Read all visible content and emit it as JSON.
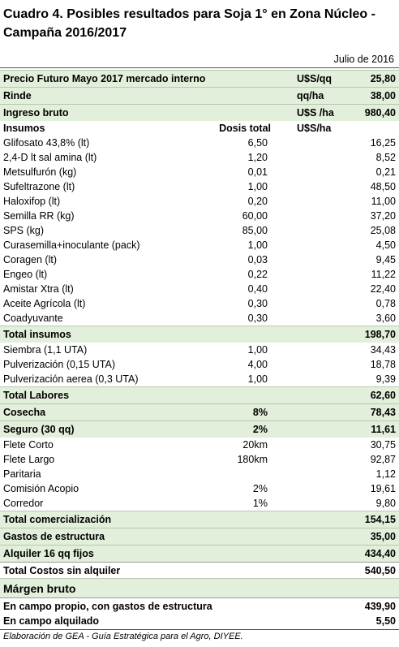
{
  "title": "Cuadro 4. Posibles resultados para Soja 1° en Zona Núcleo - Campaña 2016/2017",
  "date": "Julio de 2016",
  "rows": [
    {
      "label": "Precio Futuro Mayo 2017 mercado interno",
      "unit": "U$S/qq",
      "value": "25,80"
    },
    {
      "label": "Rinde",
      "unit": "qq/ha",
      "value": "38,00"
    },
    {
      "label": "Ingreso bruto",
      "unit": "U$S /ha",
      "value": "980,40"
    },
    {
      "label": "Insumos",
      "dose": "Dosis total",
      "unit": "U$S/ha"
    },
    {
      "label": "Glifosato 43,8% (lt)",
      "dose": "6,50",
      "value": "16,25"
    },
    {
      "label": "2,4-D lt sal amina (lt)",
      "dose": "1,20",
      "value": "8,52"
    },
    {
      "label": "Metsulfurón (kg)",
      "dose": "0,01",
      "value": "0,21"
    },
    {
      "label": "Sufeltrazone (lt)",
      "dose": "1,00",
      "value": "48,50"
    },
    {
      "label": "Haloxifop (lt)",
      "dose": "0,20",
      "value": "11,00"
    },
    {
      "label": "Semilla RR (kg)",
      "dose": "60,00",
      "value": "37,20"
    },
    {
      "label": "SPS (kg)",
      "dose": "85,00",
      "value": "25,08"
    },
    {
      "label": "Curasemilla+inoculante (pack)",
      "dose": "1,00",
      "value": "4,50"
    },
    {
      "label": "Coragen (lt)",
      "dose": "0,03",
      "value": "9,45"
    },
    {
      "label": "Engeo (lt)",
      "dose": "0,22",
      "value": "11,22"
    },
    {
      "label": "Amistar Xtra (lt)",
      "dose": "0,40",
      "value": "22,40"
    },
    {
      "label": "Aceite Agrícola (lt)",
      "dose": "0,30",
      "value": "0,78"
    },
    {
      "label": "Coadyuvante",
      "dose": "0,30",
      "value": "3,60"
    },
    {
      "label": "Total insumos",
      "value": "198,70"
    },
    {
      "label": "Siembra (1,1 UTA)",
      "dose": "1,00",
      "value": "34,43"
    },
    {
      "label": "Pulverización (0,15 UTA)",
      "dose": "4,00",
      "value": "18,78"
    },
    {
      "label": "Pulverización aerea (0,3 UTA)",
      "dose": "1,00",
      "value": "9,39"
    },
    {
      "label": "Total Labores",
      "value": "62,60"
    },
    {
      "label": "Cosecha",
      "dose": "8%",
      "value": "78,43"
    },
    {
      "label": "Seguro (30 qq)",
      "dose": "2%",
      "value": "11,61"
    },
    {
      "label": "Flete Corto",
      "dose": "20km",
      "value": "30,75"
    },
    {
      "label": "Flete Largo",
      "dose": "180km",
      "value": "92,87"
    },
    {
      "label": "Paritaria",
      "value": "1,12"
    },
    {
      "label": "Comisión Acopio",
      "dose": "2%",
      "value": "19,61"
    },
    {
      "label": "Corredor",
      "dose": "1%",
      "value": "9,80"
    },
    {
      "label": "Total comercialización",
      "value": "154,15"
    },
    {
      "label": "Gastos de estructura",
      "value": "35,00"
    },
    {
      "label": "Alquiler 16 qq fijos",
      "value": "434,40"
    },
    {
      "label": "Total Costos sin alquiler",
      "value": "540,50"
    },
    {
      "label": "Márgen bruto"
    },
    {
      "label": "En campo propio, con gastos de estructura",
      "value": "439,90"
    },
    {
      "label": "En campo alquilado",
      "value": "5,50"
    }
  ],
  "source": "Elaboración de GEA - Guía Estratégica para el Agro, DIYEE."
}
